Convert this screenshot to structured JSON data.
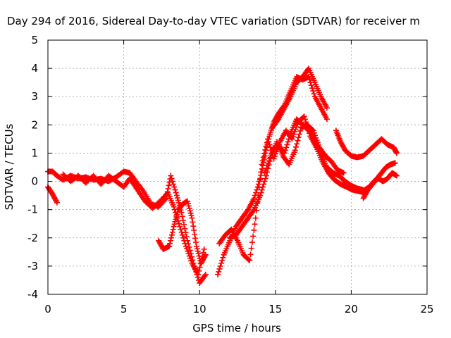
{
  "chart_data": {
    "type": "scatter",
    "title": "Day 294 of 2016, Sidereal Day-to-day VTEC variation (SDTVAR) for receiver m",
    "xlabel": "GPS time / hours",
    "ylabel": "SDTVAR / TECUs",
    "xlim": [
      0,
      25
    ],
    "ylim": [
      -4,
      5
    ],
    "x_ticks": [
      "0",
      "5",
      "10",
      "15",
      "20",
      "25"
    ],
    "y_ticks": [
      "-4",
      "-3",
      "-2",
      "-1",
      "0",
      "1",
      "2",
      "3",
      "4",
      "5"
    ],
    "grid": true,
    "legend": "none",
    "marker": "plus",
    "color": "#ff0000",
    "series": [
      {
        "x": [
          0,
          0.3,
          0.6,
          1.0,
          1.5,
          2.0,
          2.5,
          3.0,
          3.5,
          4.0,
          4.5,
          5.0,
          5.4,
          5.8,
          6.3,
          6.8,
          7.3,
          7.8,
          8.1,
          8.5,
          8.8,
          9.2,
          9.6,
          10.0,
          10.4
        ],
        "y": [
          0.35,
          0.35,
          0.2,
          0.05,
          0.2,
          0.1,
          0.15,
          0.05,
          0.1,
          0.0,
          0.15,
          0.35,
          0.3,
          0.0,
          -0.35,
          -0.8,
          -0.9,
          -0.6,
          0.2,
          -0.5,
          -1.1,
          -2.1,
          -2.9,
          -3.6,
          -3.3
        ]
      },
      {
        "x": [
          0,
          0.3,
          0.6
        ],
        "y": [
          -0.2,
          -0.45,
          -0.75
        ]
      },
      {
        "x": [
          1.0,
          1.5,
          2.0,
          2.5,
          3.0,
          3.5,
          4.0,
          4.5,
          5.0,
          5.4,
          5.9,
          6.4,
          6.9,
          7.4,
          7.9,
          8.3,
          8.7,
          9.1,
          9.5,
          9.9,
          10.3
        ],
        "y": [
          0.25,
          0.0,
          0.2,
          -0.05,
          0.2,
          -0.1,
          0.2,
          0.0,
          -0.2,
          0.1,
          -0.3,
          -0.7,
          -0.95,
          -0.7,
          -0.4,
          -0.9,
          -1.6,
          -2.3,
          -2.9,
          -3.3,
          -2.4
        ]
      },
      {
        "x": [
          7.3,
          7.6,
          8.0,
          8.3,
          8.6,
          8.9,
          9.2,
          9.5,
          9.8,
          10.1,
          10.4
        ],
        "y": [
          -2.1,
          -2.4,
          -2.3,
          -1.6,
          -1.0,
          -0.8,
          -0.7,
          -1.3,
          -2.3,
          -2.9,
          -2.6
        ]
      },
      {
        "x": [
          11.2,
          11.6,
          12.0,
          12.4,
          12.8,
          13.2,
          13.6,
          14.0,
          14.3,
          14.6,
          14.9,
          15.2,
          15.6,
          16.0,
          16.4,
          16.8,
          17.2,
          17.6,
          18.0,
          18.4
        ],
        "y": [
          -3.3,
          -2.6,
          -2.1,
          -1.6,
          -1.3,
          -1.0,
          -0.6,
          0.1,
          0.9,
          1.6,
          2.1,
          2.4,
          2.7,
          3.2,
          3.7,
          3.6,
          3.7,
          3.0,
          2.6,
          2.2
        ]
      },
      {
        "x": [
          11.3,
          11.7,
          12.1,
          12.5,
          12.9,
          13.3,
          13.7,
          14.1,
          14.5,
          14.9,
          15.3,
          15.7,
          16.1,
          16.5,
          16.9,
          17.3,
          17.7,
          18.1,
          18.5,
          18.9,
          19.3,
          19.7,
          20.1,
          20.5,
          20.9
        ],
        "y": [
          -2.2,
          -1.9,
          -1.7,
          -2.1,
          -2.6,
          -2.8,
          -1.3,
          0.6,
          1.5,
          0.8,
          1.4,
          1.8,
          1.5,
          2.1,
          2.3,
          1.6,
          1.2,
          0.7,
          0.3,
          0.05,
          -0.1,
          -0.2,
          -0.3,
          -0.35,
          -0.4
        ]
      },
      {
        "x": [
          12.0,
          12.4,
          12.8,
          13.2,
          13.6,
          14.0,
          14.4,
          14.8,
          15.2,
          15.6,
          16.0,
          16.4,
          16.8,
          17.2,
          17.6,
          18.0,
          18.4,
          18.8,
          19.2,
          19.6,
          20.0,
          20.4,
          20.8
        ],
        "y": [
          -2.0,
          -1.9,
          -1.6,
          -1.3,
          -1.0,
          -0.5,
          0.2,
          1.1,
          1.3,
          1.0,
          1.7,
          2.2,
          2.0,
          1.8,
          1.5,
          1.0,
          0.5,
          0.3,
          0.2,
          0.0,
          -0.15,
          -0.25,
          -0.3
        ]
      },
      {
        "x": [
          14.3,
          14.7,
          15.1,
          15.5,
          15.9,
          16.3,
          16.7,
          17.1,
          17.5,
          17.9,
          18.3,
          18.7,
          19.1,
          19.5
        ],
        "y": [
          0.3,
          0.9,
          1.4,
          0.9,
          0.6,
          1.1,
          1.9,
          2.0,
          1.8,
          1.2,
          0.9,
          0.7,
          0.4,
          0.3
        ]
      },
      {
        "x": [
          14.8,
          15.2,
          15.6,
          16.0,
          16.4,
          16.8,
          17.2,
          17.6,
          18.0,
          18.4
        ],
        "y": [
          1.9,
          2.2,
          2.6,
          3.0,
          3.5,
          3.7,
          4.0,
          3.5,
          3.0,
          2.6
        ]
      },
      {
        "x": [
          19.0,
          19.3,
          19.6,
          20.0,
          20.4,
          20.8,
          21.2,
          21.6,
          22.0,
          22.4,
          22.8,
          23.0
        ],
        "y": [
          1.8,
          1.4,
          1.1,
          0.9,
          0.85,
          0.9,
          1.1,
          1.3,
          1.5,
          1.3,
          1.2,
          1.0
        ]
      },
      {
        "x": [
          20.8,
          21.1,
          21.4,
          21.7,
          22.0,
          22.3,
          22.6,
          22.9
        ],
        "y": [
          -0.6,
          -0.3,
          -0.1,
          0.1,
          0.3,
          0.5,
          0.6,
          0.65
        ]
      },
      {
        "x": [
          20.9,
          21.2,
          21.5,
          21.8,
          22.1,
          22.4,
          22.7,
          23.0
        ],
        "y": [
          -0.3,
          -0.2,
          0.0,
          0.1,
          0.0,
          0.1,
          0.3,
          0.2
        ]
      }
    ]
  }
}
